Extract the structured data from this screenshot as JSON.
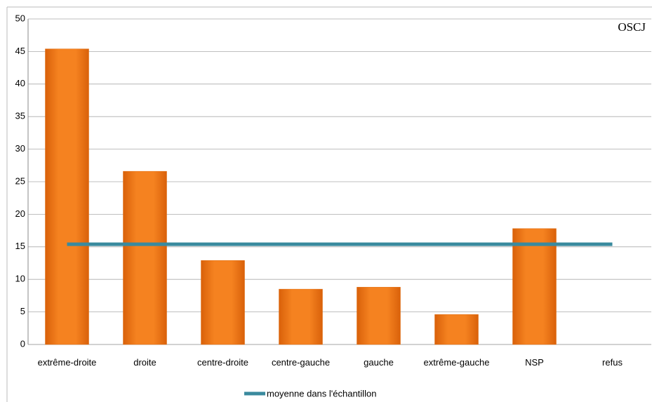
{
  "chart_data": {
    "type": "bar",
    "logo": "OSCJ",
    "categories": [
      "extrême-droite",
      "droite",
      "centre-droite",
      "centre-gauche",
      "gauche",
      "extrême-gauche",
      "NSP",
      "refus"
    ],
    "series": [
      {
        "type": "bar",
        "color": "#f07a12",
        "values": [
          45.4,
          26.6,
          12.9,
          8.5,
          8.8,
          4.6,
          17.8,
          0
        ]
      },
      {
        "type": "line",
        "name": "moyenne dans l'échantillon",
        "color": "#3a8a9e",
        "values": [
          15.4,
          15.4,
          15.4,
          15.4,
          15.4,
          15.4,
          15.4,
          15.4
        ]
      }
    ],
    "ylim": [
      0,
      50
    ],
    "yticks": [
      0,
      5,
      10,
      15,
      20,
      25,
      30,
      35,
      40,
      45,
      50
    ],
    "grid": true,
    "legend": "bottom"
  }
}
